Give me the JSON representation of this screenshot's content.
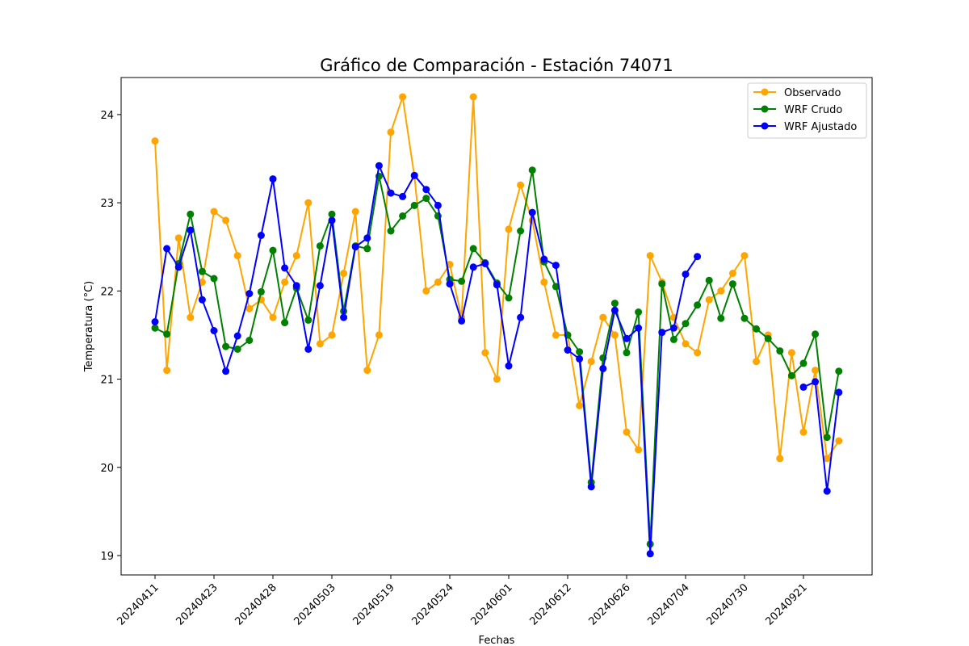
{
  "chart_data": {
    "type": "line",
    "title": "Gráfico de Comparación - Estación 74071",
    "xlabel": "Fechas",
    "ylabel": "Temperatura (°C)",
    "ylim": [
      18.78,
      24.42
    ],
    "yticks": [
      19,
      20,
      21,
      22,
      23,
      24
    ],
    "n_points": 60,
    "xtick_positions": [
      0,
      5,
      10,
      15,
      20,
      25,
      30,
      35,
      40,
      45,
      50,
      55
    ],
    "xtick_labels": [
      "20240411",
      "20240423",
      "20240428",
      "20240503",
      "20240519",
      "20240524",
      "20240601",
      "20240612",
      "20240626",
      "20240704",
      "20240730",
      "20240921"
    ],
    "legend_position": "upper-right",
    "grid": false,
    "series": [
      {
        "name": "Observado",
        "color": "#ffa500",
        "values": [
          23.7,
          21.1,
          22.6,
          21.7,
          22.1,
          22.9,
          22.8,
          22.4,
          21.8,
          21.9,
          21.7,
          22.1,
          22.4,
          23.0,
          21.4,
          21.5,
          22.2,
          22.9,
          21.1,
          21.5,
          23.8,
          24.2,
          23.3,
          22.0,
          22.1,
          22.3,
          21.7,
          24.2,
          21.3,
          21.0,
          22.7,
          23.2,
          22.8,
          22.1,
          21.5,
          21.5,
          20.7,
          21.2,
          21.7,
          21.5,
          20.4,
          20.2,
          22.4,
          22.1,
          21.7,
          21.4,
          21.3,
          21.9,
          22.0,
          22.2,
          22.4,
          21.2,
          21.5,
          20.1,
          21.3,
          20.4,
          21.1,
          20.1,
          20.3,
          null
        ]
      },
      {
        "name": "WRF Crudo",
        "color": "#008000",
        "values": [
          21.58,
          21.51,
          22.31,
          22.87,
          22.22,
          22.14,
          21.37,
          21.34,
          21.44,
          21.99,
          22.46,
          21.64,
          22.03,
          21.67,
          22.51,
          22.87,
          21.77,
          22.51,
          22.48,
          23.3,
          22.68,
          22.85,
          22.97,
          23.05,
          22.85,
          22.13,
          22.11,
          22.48,
          22.32,
          22.09,
          21.92,
          22.68,
          23.37,
          22.33,
          22.05,
          21.5,
          21.31,
          19.83,
          21.24,
          21.86,
          21.3,
          21.76,
          19.13,
          22.08,
          21.45,
          21.63,
          21.84,
          22.12,
          21.69,
          22.08,
          21.69,
          21.57,
          21.46,
          21.32,
          21.04,
          21.18,
          21.51,
          20.34,
          21.09,
          null
        ]
      },
      {
        "name": "WRF Ajustado",
        "color": "#0000ff",
        "values": [
          21.65,
          22.48,
          22.27,
          22.69,
          21.9,
          21.55,
          21.09,
          21.49,
          21.97,
          22.63,
          23.27,
          22.26,
          22.06,
          21.34,
          22.06,
          22.8,
          21.7,
          22.5,
          22.6,
          23.42,
          23.11,
          23.07,
          23.31,
          23.15,
          22.97,
          22.08,
          21.66,
          22.27,
          22.31,
          22.07,
          21.15,
          21.7,
          22.89,
          22.36,
          22.29,
          21.33,
          21.23,
          19.78,
          21.12,
          21.78,
          21.46,
          21.58,
          19.02,
          21.53,
          21.58,
          22.19,
          22.39,
          null,
          null,
          null,
          null,
          null,
          null,
          null,
          null,
          20.91,
          20.97,
          19.73,
          20.85,
          null
        ]
      }
    ]
  }
}
